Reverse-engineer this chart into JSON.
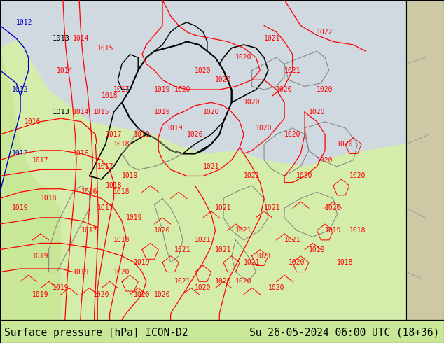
{
  "title_left": "Surface pressure [hPa] ICON-D2",
  "title_right": "Su 26-05-2024 06:00 UTC (18+36)",
  "title_fontsize": 10.5,
  "bg_color_sea": "#d0d8e0",
  "bg_color_land": "#d4edaa",
  "bg_color_right_strip": "#cdc9a5",
  "bg_color_left_land": "#c8e898",
  "bottom_bar_color": "#c8e898",
  "contour_color_red": "#ff0000",
  "contour_color_blue": "#0000cc",
  "contour_color_black": "#000000",
  "border_gray": "#808080",
  "figure_width": 6.34,
  "figure_height": 4.9,
  "dpi": 100
}
